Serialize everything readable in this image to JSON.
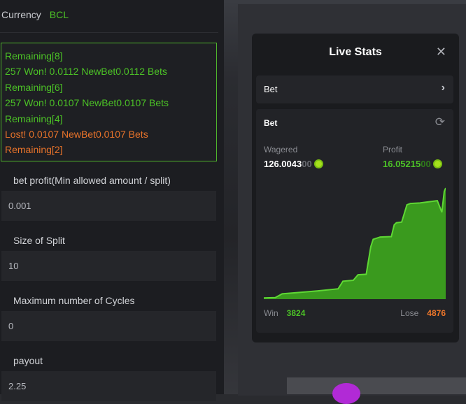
{
  "left_panel": {
    "currency_label": "Currency",
    "currency_value": "BCL",
    "log": [
      {
        "text": "Remaining[8]",
        "color": "#4cc226"
      },
      {
        "text": "257 Won! 0.0112 NewBet0.0112 Bets",
        "color": "#4cc226"
      },
      {
        "text": "Remaining[6]",
        "color": "#4cc226"
      },
      {
        "text": "257 Won! 0.0107 NewBet0.0107 Bets",
        "color": "#4cc226"
      },
      {
        "text": "Remaining[4]",
        "color": "#4cc226"
      },
      {
        "text": "Lost! 0.0107 NewBet0.0107 Bets",
        "color": "#e8732a"
      },
      {
        "text": "Remaining[2]",
        "color": "#e8732a"
      }
    ],
    "fields": [
      {
        "label": "bet profit(Min allowed amount / split)",
        "value": "0.001"
      },
      {
        "label": "Size of Split",
        "value": "10"
      },
      {
        "label": "Maximum number of Cycles",
        "value": "0"
      },
      {
        "label": "payout",
        "value": "2.25"
      }
    ]
  },
  "live_stats": {
    "title": "Live Stats",
    "close_icon": "close-icon",
    "bet_selector": "Bet",
    "card_title": "Bet",
    "wagered_label": "Wagered",
    "wagered_value": "126.0043",
    "wagered_suffix": "00",
    "profit_label": "Profit",
    "profit_value": "16.05215",
    "profit_suffix": "00",
    "win_label": "Win",
    "win_value": "3824",
    "lose_label": "Lose",
    "lose_value": "4876",
    "colors": {
      "win": "#4cc226",
      "lose": "#f0772a",
      "chart_fill": "#3a9a1e",
      "chart_line": "#5fd834"
    }
  },
  "chart_data": {
    "type": "area",
    "points": [
      [
        0,
        0.07
      ],
      [
        6.3,
        0.13
      ],
      [
        10.1,
        0.67
      ],
      [
        17.8,
        0.84
      ],
      [
        29.4,
        1.1
      ],
      [
        40.9,
        1.4
      ],
      [
        43.5,
        2.51
      ],
      [
        49.2,
        2.64
      ],
      [
        51.8,
        3.44
      ],
      [
        56.3,
        3.51
      ],
      [
        58.8,
        7.52
      ],
      [
        60.1,
        8.59
      ],
      [
        64.0,
        8.93
      ],
      [
        70.1,
        8.99
      ],
      [
        71.7,
        10.7
      ],
      [
        72.9,
        11.0
      ],
      [
        75.8,
        11.1
      ],
      [
        78.7,
        13.61
      ],
      [
        80.6,
        13.81
      ],
      [
        85.8,
        13.88
      ],
      [
        95.4,
        14.21
      ],
      [
        97.9,
        12.54
      ],
      [
        99.2,
        15.55
      ],
      [
        100,
        16.05
      ]
    ],
    "ylim": [
      0,
      16.05
    ],
    "grid": false
  }
}
